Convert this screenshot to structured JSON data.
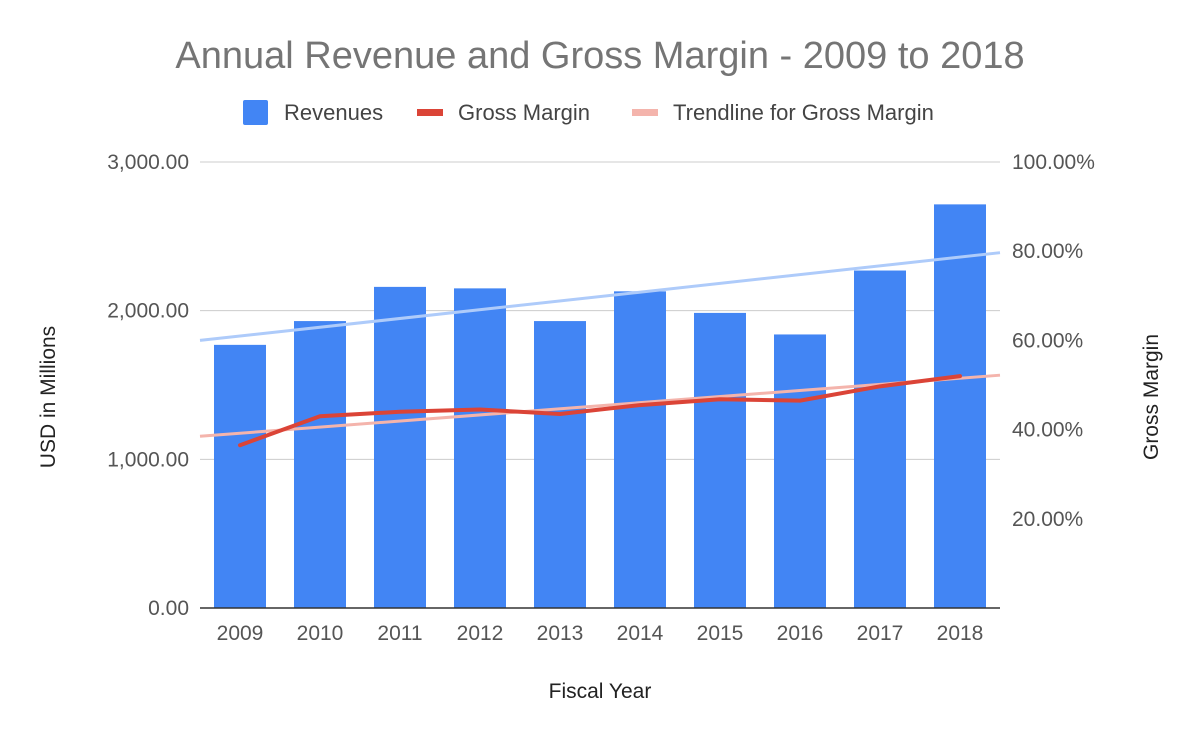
{
  "chart_data": {
    "type": "bar",
    "title": "Annual Revenue and Gross Margin - 2009 to 2018",
    "xlabel": "Fiscal Year",
    "ylabel": "USD in Millions",
    "y2label": "Gross Margin",
    "categories": [
      "2009",
      "2010",
      "2011",
      "2012",
      "2013",
      "2014",
      "2015",
      "2016",
      "2017",
      "2018"
    ],
    "ylim": [
      0,
      3000
    ],
    "y2lim": [
      0,
      1
    ],
    "y_ticks": [
      "0.00",
      "1,000.00",
      "2,000.00",
      "3,000.00"
    ],
    "y2_ticks": [
      "20.00%",
      "40.00%",
      "60.00%",
      "80.00%",
      "100.00%"
    ],
    "grid": true,
    "legend_position": "top",
    "series": [
      {
        "name": "Revenues",
        "type": "bar",
        "axis": "left",
        "color": "#4285f4",
        "values": [
          1770,
          1930,
          2160,
          2150,
          1930,
          2130,
          1985,
          1840,
          2270,
          2715
        ]
      },
      {
        "name": "Gross Margin",
        "type": "line",
        "axis": "right",
        "color": "#db4437",
        "values": [
          0.365,
          0.43,
          0.44,
          0.445,
          0.435,
          0.455,
          0.468,
          0.465,
          0.497,
          0.52
        ]
      }
    ],
    "trendlines": [
      {
        "name": "Trendline for Gross Margin",
        "series": "Gross Margin",
        "axis": "right",
        "color": "#f4b4ac",
        "start": 0.385,
        "end": 0.522
      },
      {
        "axis": "left",
        "color": "#aecbfa",
        "start": 1800,
        "end": 2390
      }
    ]
  }
}
